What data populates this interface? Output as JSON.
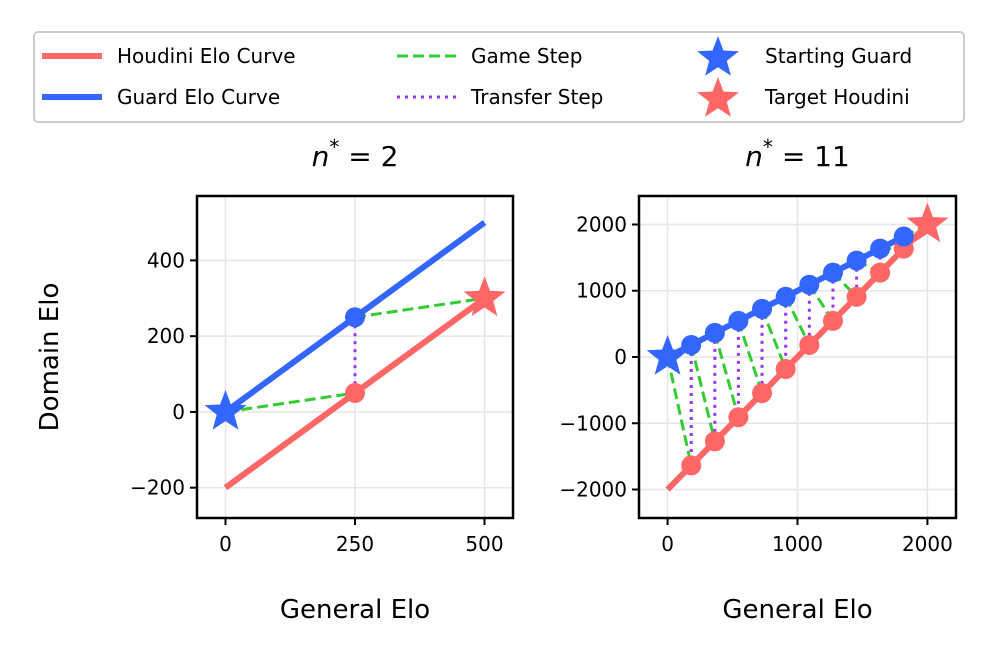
{
  "legend": {
    "houdini": "Houdini Elo Curve",
    "guard": "Guard Elo Curve",
    "game": "Game Step",
    "transfer": "Transfer Step",
    "start": "Starting Guard",
    "target": "Target Houdini"
  },
  "colors": {
    "houdini": "#ff6666",
    "guard": "#3366ff",
    "game": "#33cc33",
    "transfer": "#9933ff"
  },
  "chart_data": [
    {
      "type": "line",
      "title_prefix": "n",
      "title_sup": "*",
      "title_suffix": " = 2",
      "xlabel": "General Elo",
      "ylabel": "Domain Elo",
      "xlim": [
        -55,
        555
      ],
      "ylim": [
        -280,
        570
      ],
      "xticks": [
        0,
        250,
        500
      ],
      "yticks": [
        -200,
        0,
        200,
        400
      ],
      "ytick_labels": [
        "−200",
        "0",
        "200",
        "400"
      ],
      "grid": true,
      "houdini_line": [
        [
          0,
          -200
        ],
        [
          500,
          300
        ]
      ],
      "guard_line": [
        [
          0,
          0
        ],
        [
          500,
          500
        ]
      ],
      "guard_points": [
        [
          250,
          250
        ]
      ],
      "houdini_points": [
        [
          250,
          50
        ]
      ],
      "game_steps": [
        [
          [
            0,
            0
          ],
          [
            250,
            50
          ]
        ],
        [
          [
            250,
            250
          ],
          [
            500,
            300
          ]
        ]
      ],
      "transfer_steps": [
        [
          [
            250,
            250
          ],
          [
            250,
            50
          ]
        ]
      ],
      "starting_guard": [
        0,
        0
      ],
      "target_houdini": [
        500,
        300
      ]
    },
    {
      "type": "line",
      "title_prefix": "n",
      "title_sup": "*",
      "title_suffix": " = 11",
      "xlabel": "General Elo",
      "ylabel": "",
      "xlim": [
        -220,
        2220
      ],
      "ylim": [
        -2430,
        2430
      ],
      "xticks": [
        0,
        1000,
        2000
      ],
      "yticks": [
        -2000,
        -1000,
        0,
        1000,
        2000
      ],
      "ytick_labels": [
        "−2000",
        "−1000",
        "0",
        "1000",
        "2000"
      ],
      "grid": true,
      "houdini_line": [
        [
          0,
          -2000
        ],
        [
          2000,
          2000
        ]
      ],
      "guard_line": [
        [
          0,
          0
        ],
        [
          1818,
          1818
        ]
      ],
      "guard_points": [
        [
          182,
          182
        ],
        [
          364,
          364
        ],
        [
          545,
          545
        ],
        [
          727,
          727
        ],
        [
          909,
          909
        ],
        [
          1091,
          1091
        ],
        [
          1273,
          1273
        ],
        [
          1455,
          1455
        ],
        [
          1636,
          1636
        ],
        [
          1818,
          1818
        ]
      ],
      "houdini_points": [
        [
          182,
          -1636
        ],
        [
          364,
          -1273
        ],
        [
          545,
          -909
        ],
        [
          727,
          -545
        ],
        [
          909,
          -182
        ],
        [
          1091,
          182
        ],
        [
          1273,
          545
        ],
        [
          1455,
          909
        ],
        [
          1636,
          1273
        ],
        [
          1818,
          1636
        ]
      ],
      "starting_guard": [
        0,
        0
      ],
      "target_houdini": [
        2000,
        2000
      ]
    }
  ]
}
